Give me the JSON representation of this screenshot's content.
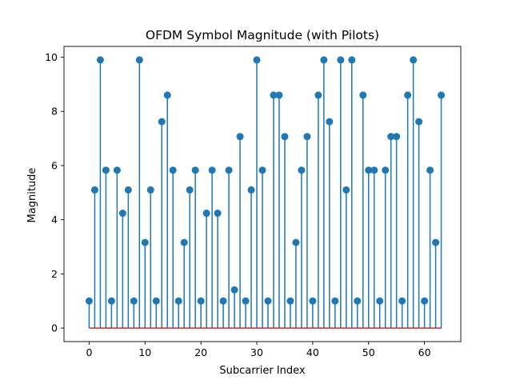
{
  "chart_data": {
    "type": "stem",
    "title": "OFDM Symbol Magnitude (with Pilots)",
    "xlabel": "Subcarrier Index",
    "ylabel": "Magnitude",
    "xlim": [
      -4.5,
      66.5
    ],
    "ylim": [
      -0.5,
      10.4
    ],
    "xticks": [
      0,
      10,
      20,
      30,
      40,
      50,
      60
    ],
    "yticks": [
      0,
      2,
      4,
      6,
      8,
      10
    ],
    "grid": false,
    "baseline": 0,
    "colors": {
      "stem": "#1f77b4",
      "marker": "#1f77b4",
      "baseline": "#d62728"
    },
    "x": [
      0,
      1,
      2,
      3,
      4,
      5,
      6,
      7,
      8,
      9,
      10,
      11,
      12,
      13,
      14,
      15,
      16,
      17,
      18,
      19,
      20,
      21,
      22,
      23,
      24,
      25,
      26,
      27,
      28,
      29,
      30,
      31,
      32,
      33,
      34,
      35,
      36,
      37,
      38,
      39,
      40,
      41,
      42,
      43,
      44,
      45,
      46,
      47,
      48,
      49,
      50,
      51,
      52,
      53,
      54,
      55,
      56,
      57,
      58,
      59,
      60,
      61,
      62,
      63
    ],
    "values": [
      1.0,
      5.1,
      9.9,
      5.83,
      1.0,
      5.83,
      4.24,
      5.1,
      1.0,
      9.9,
      3.16,
      5.1,
      1.0,
      7.62,
      8.6,
      5.83,
      1.0,
      3.16,
      5.1,
      5.83,
      1.0,
      4.24,
      5.83,
      4.24,
      1.0,
      5.83,
      1.41,
      7.07,
      1.0,
      5.1,
      9.9,
      5.83,
      1.0,
      8.6,
      8.6,
      7.07,
      1.0,
      3.16,
      5.83,
      7.07,
      1.0,
      8.6,
      9.9,
      7.62,
      1.0,
      9.9,
      5.1,
      9.9,
      1.0,
      8.6,
      5.83,
      5.83,
      1.0,
      5.83,
      7.07,
      7.07,
      1.0,
      8.6,
      9.9,
      7.62,
      1.0,
      5.83,
      3.16,
      8.6
    ]
  }
}
